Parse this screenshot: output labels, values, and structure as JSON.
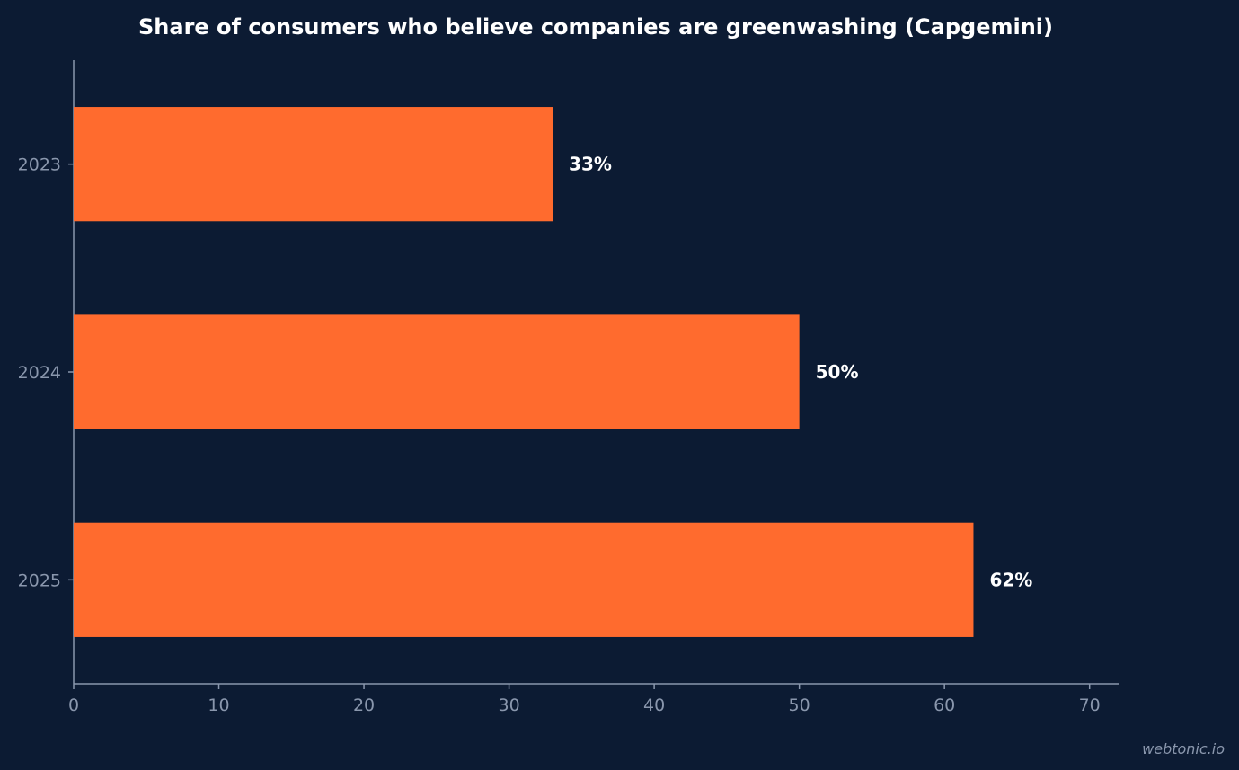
{
  "chart_data": {
    "type": "bar",
    "orientation": "horizontal",
    "title": "Share of consumers who believe companies are greenwashing (Capgemini)",
    "xlabel": "",
    "ylabel": "",
    "categories": [
      "2023",
      "2024",
      "2025"
    ],
    "values": [
      33,
      50,
      62
    ],
    "value_labels": [
      "33%",
      "50%",
      "62%"
    ],
    "xlim": [
      0,
      72
    ],
    "x_ticks": [
      0,
      10,
      20,
      30,
      40,
      50,
      60,
      70
    ],
    "grid": false,
    "legend": "none",
    "colors": {
      "background": "#0c1b33",
      "bar": "#ff6b2e",
      "axis": "#8a97ad",
      "tick_text": "#8a97ad",
      "value_text": "#ffffff",
      "title_text": "#ffffff"
    }
  },
  "watermark": "webtonic.io"
}
